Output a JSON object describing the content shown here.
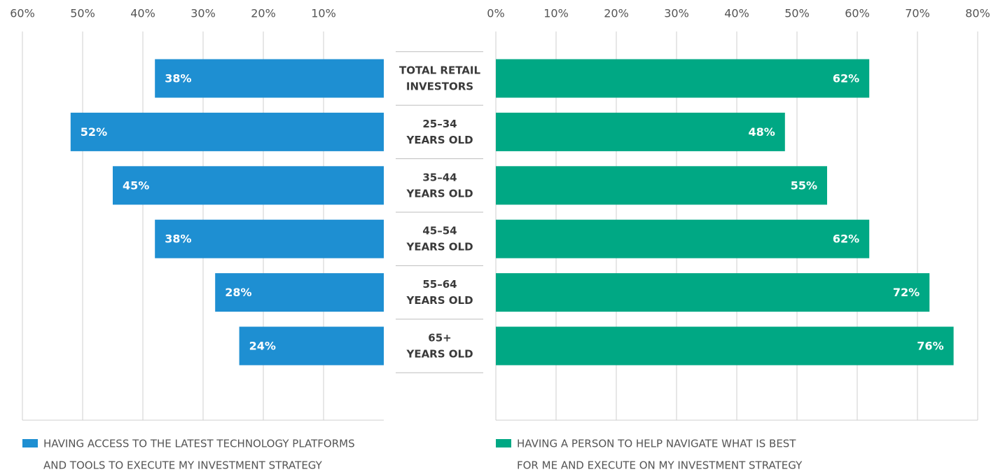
{
  "chart_data": [
    {
      "type": "bar",
      "orientation": "horizontal",
      "direction": "right-to-left",
      "categories": [
        [
          "TOTAL RETAIL",
          "INVESTORS"
        ],
        [
          "25–34",
          "YEARS OLD"
        ],
        [
          "35–44",
          "YEARS OLD"
        ],
        [
          "45–54",
          "YEARS OLD"
        ],
        [
          "55–64",
          "YEARS OLD"
        ],
        [
          "65+",
          "YEARS OLD"
        ]
      ],
      "series": [
        {
          "name": [
            "HAVING ACCESS TO THE LATEST TECHNOLOGY PLATFORMS",
            "AND TOOLS TO EXECUTE MY INVESTMENT STRATEGY"
          ],
          "color": "#1e8fd2",
          "values": [
            38,
            52,
            45,
            38,
            28,
            24
          ],
          "value_labels": [
            "38%",
            "52%",
            "45%",
            "38%",
            "28%",
            "24%"
          ]
        }
      ],
      "xlim": [
        0,
        60
      ],
      "xticks": [
        {
          "value": 60,
          "label": "60%"
        },
        {
          "value": 50,
          "label": "50%"
        },
        {
          "value": 40,
          "label": "40%"
        },
        {
          "value": 30,
          "label": "30%"
        },
        {
          "value": 20,
          "label": "20%"
        },
        {
          "value": 10,
          "label": "10%"
        }
      ],
      "grid": true
    },
    {
      "type": "bar",
      "orientation": "horizontal",
      "direction": "left-to-right",
      "series": [
        {
          "name": [
            "HAVING A PERSON TO HELP NAVIGATE WHAT IS BEST",
            "FOR ME AND EXECUTE ON MY INVESTMENT STRATEGY"
          ],
          "color": "#00a884",
          "values": [
            62,
            48,
            55,
            62,
            72,
            76
          ],
          "value_labels": [
            "62%",
            "48%",
            "55%",
            "62%",
            "72%",
            "76%"
          ]
        }
      ],
      "xlim": [
        0,
        80
      ],
      "xticks": [
        {
          "value": 0,
          "label": "0%"
        },
        {
          "value": 10,
          "label": "10%"
        },
        {
          "value": 20,
          "label": "20%"
        },
        {
          "value": 30,
          "label": "30%"
        },
        {
          "value": 40,
          "label": "40%"
        },
        {
          "value": 50,
          "label": "50%"
        },
        {
          "value": 60,
          "label": "60%"
        },
        {
          "value": 70,
          "label": "70%"
        },
        {
          "value": 80,
          "label": "80%"
        }
      ],
      "grid": true
    }
  ]
}
